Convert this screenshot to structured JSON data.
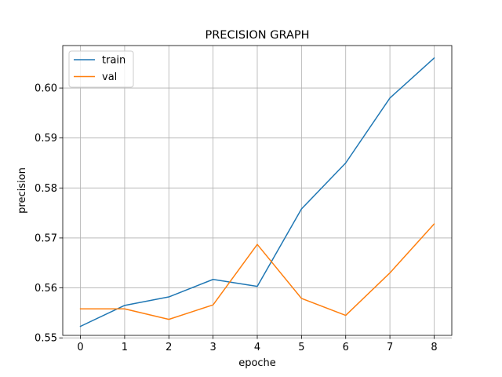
{
  "chart_data": {
    "type": "line",
    "title": "PRECISION GRAPH",
    "xlabel": "epoche",
    "ylabel": "precision",
    "x": [
      0,
      1,
      2,
      3,
      4,
      5,
      6,
      7,
      8
    ],
    "xlim": [
      -0.4,
      8.4
    ],
    "ylim": [
      0.5505,
      0.6085
    ],
    "xticks": [
      "0",
      "1",
      "2",
      "3",
      "4",
      "5",
      "6",
      "7",
      "8"
    ],
    "yticks": [
      "0.55",
      "0.56",
      "0.57",
      "0.58",
      "0.59",
      "0.60"
    ],
    "grid": true,
    "legend_position": "top-left",
    "series": [
      {
        "name": "train",
        "color": "#1f77b4",
        "values": [
          0.5523,
          0.5565,
          0.5582,
          0.5617,
          0.5603,
          0.5758,
          0.585,
          0.598,
          0.606
        ]
      },
      {
        "name": "val",
        "color": "#ff7f0e",
        "values": [
          0.5558,
          0.5558,
          0.5537,
          0.5566,
          0.5687,
          0.5579,
          0.5545,
          0.563,
          0.5728
        ]
      }
    ]
  }
}
